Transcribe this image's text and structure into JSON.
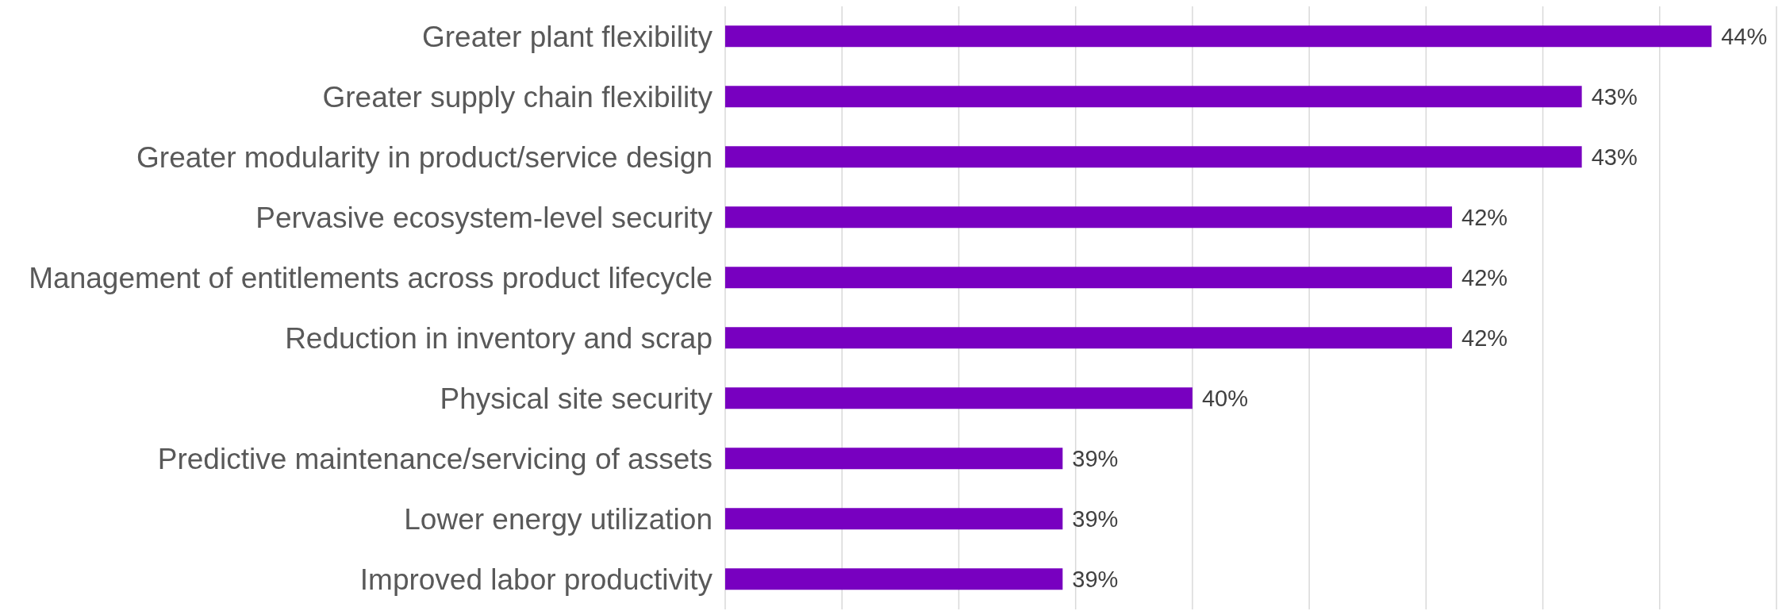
{
  "chart_data": {
    "type": "bar",
    "orientation": "horizontal",
    "categories": [
      "Greater plant flexibility",
      "Greater supply chain flexibility",
      "Greater modularity in product/service design",
      "Pervasive ecosystem-level security",
      "Management of entitlements across product lifecycle",
      "Reduction in inventory and scrap",
      "Physical site security",
      "Predictive maintenance/servicing of assets",
      "Lower energy utilization",
      "Improved labor productivity"
    ],
    "values": [
      44,
      43,
      43,
      42,
      42,
      42,
      40,
      39,
      39,
      39
    ],
    "value_labels": [
      "44%",
      "43%",
      "43%",
      "42%",
      "42%",
      "42%",
      "40%",
      "39%",
      "39%",
      "39%"
    ],
    "color": "#7800c0",
    "xlim": [
      36.4,
      44.5
    ],
    "xticks": [
      {
        "value": 36.4,
        "label": null
      },
      {
        "value": 37.3,
        "label": null
      },
      {
        "value": 38.2,
        "label": null
      },
      {
        "value": 39.1,
        "label": null
      },
      {
        "value": 40.0,
        "label": null
      },
      {
        "value": 40.9,
        "label": null
      },
      {
        "value": 41.8,
        "label": null
      },
      {
        "value": 42.7,
        "label": null
      },
      {
        "value": 43.6,
        "label": null
      },
      {
        "value": 44.5,
        "label": null
      }
    ],
    "grid": "x",
    "tick_labels": "y"
  }
}
